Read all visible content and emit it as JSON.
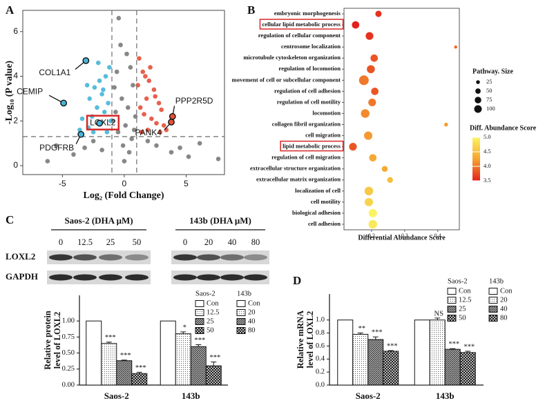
{
  "panel_labels": [
    "A",
    "B",
    "C",
    "D"
  ],
  "blot": {
    "groups": [
      "Saos-2 (DHA μM)",
      "143b (DHA μM)"
    ],
    "lanes": [
      [
        "0",
        "12.5",
        "25",
        "50"
      ],
      [
        "0",
        "20",
        "40",
        "80"
      ]
    ],
    "rows": [
      "LOXL2",
      "GAPDH"
    ]
  },
  "chart_data": [
    {
      "type": "scatter",
      "xlabel": "Log₂ (Fold Change)",
      "ylabel": "-Log₁₀ (P value)",
      "xlim": [
        -8.2,
        8.1
      ],
      "ylim": [
        -0.4,
        6.95
      ],
      "xticks": [
        -5,
        0,
        5
      ],
      "yticks": [
        0,
        2,
        4,
        6
      ],
      "grid": false,
      "ref_lines": {
        "x": [
          -1,
          1
        ],
        "y": [
          1.3
        ]
      },
      "series": [
        {
          "color": "#7a7a7a",
          "x": [
            -0.45,
            -0.3,
            0.2,
            -0.6,
            0.5,
            -0.8,
            0.7,
            -0.2,
            0.3,
            0.9,
            -0.9,
            0.1,
            -0.5,
            0.6,
            -0.1,
            0.4,
            -3.2,
            -4.1,
            -5.5,
            -2.5,
            2.6,
            3.8,
            5.2,
            7.6,
            6.1,
            -1.8,
            1.9,
            -6.2,
            4.5,
            0.0,
            -0.7,
            0.8
          ],
          "values": [
            6.6,
            5.4,
            5.0,
            4.2,
            4.4,
            3.5,
            3.6,
            3.0,
            2.6,
            2.2,
            2.0,
            1.8,
            1.5,
            1.2,
            0.9,
            0.6,
            0.8,
            0.5,
            0.9,
            1.1,
            0.9,
            0.6,
            0.4,
            0.3,
            1.0,
            0.7,
            1.1,
            0.2,
            0.8,
            0.2,
            2.4,
            1.6
          ]
        },
        {
          "color": "#45b5d6",
          "x": [
            -1.2,
            -1.5,
            -2.0,
            -2.4,
            -1.8,
            -2.8,
            -3.0,
            -1.3,
            -1.6,
            -2.2,
            -2.6,
            -3.4,
            -1.9,
            -1.1,
            -2.9,
            -3.6,
            -1.4,
            -2.1,
            -2.5,
            -1.7
          ],
          "values": [
            4.4,
            4.0,
            3.8,
            3.5,
            3.2,
            3.0,
            3.6,
            2.8,
            2.4,
            2.6,
            2.2,
            2.1,
            1.9,
            2.0,
            1.7,
            1.6,
            1.5,
            4.6,
            1.5,
            3.4
          ]
        },
        {
          "color": "#e5503a",
          "x": [
            1.2,
            1.5,
            2.0,
            2.4,
            1.8,
            2.8,
            3.0,
            1.3,
            1.6,
            2.2,
            2.6,
            3.2,
            1.9,
            1.1,
            2.9,
            1.4,
            2.1,
            1.7,
            2.5,
            3.4
          ],
          "values": [
            4.8,
            4.2,
            3.8,
            3.4,
            3.0,
            2.8,
            2.5,
            2.6,
            2.3,
            2.1,
            1.9,
            1.8,
            1.6,
            3.6,
            1.5,
            1.5,
            4.4,
            4.0,
            3.1,
            1.6
          ]
        }
      ],
      "annotations": [
        {
          "text": "COL1A1",
          "x": -3.1,
          "y": 4.7,
          "color": "#45b5d6"
        },
        {
          "text": "CEMIP",
          "x": -4.9,
          "y": 2.8,
          "color": "#45b5d6"
        },
        {
          "text": "LOXL2",
          "x": -2.0,
          "y": 1.9,
          "color": "#45b5d6",
          "boxed": true
        },
        {
          "text": "PDGFRB",
          "x": -3.5,
          "y": 1.4,
          "color": "#45b5d6"
        },
        {
          "text": "PPP2R5D",
          "x": 3.9,
          "y": 2.2,
          "color": "#e5503a"
        },
        {
          "text": "PANK4",
          "x": 3.8,
          "y": 1.95,
          "color": "#e5503a"
        }
      ]
    },
    {
      "type": "bubble",
      "xlabel": "Differential Abundance Score",
      "categories": [
        "embryonic morphogenesis",
        "cellular lipid metabolic process",
        "regulation of cellular component",
        "centrosome localization",
        "microtubule cytoskeleton organization",
        "regulation of locomotion",
        "movement of cell or subcellular component",
        "regulation of cell adhesion",
        "regulation of cell motility",
        "locomotion",
        "collagen fibril organization",
        "cell migration",
        "lipid metabolic process",
        "regulation of cell migration",
        "extracellular structure organization",
        "extracellular matrix organization",
        "localization of cell",
        "cell motility",
        "biological adhesion",
        "cell adhesion"
      ],
      "values": [
        0.221,
        0.152,
        0.194,
        0.454,
        0.208,
        0.198,
        0.177,
        0.21,
        0.202,
        0.181,
        0.425,
        0.19,
        0.144,
        0.204,
        0.24,
        0.256,
        0.192,
        0.192,
        0.204,
        0.204
      ],
      "sizes": [
        40,
        55,
        60,
        10,
        55,
        65,
        95,
        55,
        60,
        75,
        15,
        70,
        60,
        55,
        35,
        35,
        75,
        70,
        70,
        75
      ],
      "scores": [
        3.6,
        3.5,
        3.6,
        3.9,
        3.8,
        3.8,
        4.0,
        3.8,
        4.0,
        4.1,
        4.2,
        4.2,
        3.8,
        4.3,
        4.3,
        4.5,
        4.6,
        4.7,
        5.0,
        4.9
      ],
      "highlight": [
        1,
        12
      ],
      "xlim": [
        0.117,
        0.465
      ],
      "xticks": [
        0.2,
        0.3,
        0.4
      ],
      "grid": false,
      "size_legend": {
        "title": "Pathway. Size",
        "values": [
          25,
          50,
          75,
          100
        ]
      },
      "color_legend": {
        "title": "Diff. Abundance Score",
        "ticks": [
          3.5,
          {
            "value": 4,
            "label": "4.0"
          },
          4.5,
          {
            "value": 5,
            "label": "5.0"
          }
        ],
        "colors": [
          "#e3211c",
          "#f5a431",
          "#faf462"
        ]
      }
    },
    {
      "type": "bar",
      "ylabel": [
        "Relative protein",
        "level of LOXL2"
      ],
      "categories": [
        "Saos-2",
        "143b"
      ],
      "ylim": [
        0,
        1.4
      ],
      "yticks": [
        {
          "value": 0,
          "label": "0.00"
        },
        0.25,
        {
          "value": 0.5,
          "label": "0.50"
        },
        0.75,
        {
          "value": 1,
          "label": "1.00"
        }
      ],
      "series": [
        {
          "pattern": "white",
          "values": [
            1.0,
            1.0
          ],
          "errors": [
            0,
            0
          ],
          "sig": [
            null,
            null
          ]
        },
        {
          "pattern": "dots",
          "values": [
            0.65,
            0.8
          ],
          "errors": [
            0.02,
            0.03
          ],
          "sig": [
            "***",
            "*"
          ]
        },
        {
          "pattern": "hatch",
          "values": [
            0.38,
            0.6
          ],
          "errors": [
            0.01,
            0.03
          ],
          "sig": [
            "***",
            "***"
          ]
        },
        {
          "pattern": "cross",
          "values": [
            0.18,
            0.3
          ],
          "errors": [
            0.02,
            0.06
          ],
          "sig": [
            "***",
            "***"
          ]
        }
      ],
      "legend": {
        "columns": [
          {
            "title": "Saos-2",
            "labels": [
              "Con",
              "12.5",
              "25",
              "50"
            ]
          },
          {
            "title": "143b",
            "labels": [
              "Con",
              "20",
              "40",
              "80"
            ]
          }
        ]
      }
    },
    {
      "type": "bar",
      "ylabel": [
        "Relative mRNA",
        "level of LOXL2"
      ],
      "categories": [
        "Saos-2",
        "143b"
      ],
      "ylim": [
        0,
        1.4
      ],
      "yticks": [
        {
          "value": 0,
          "label": "0.0"
        },
        0.2,
        0.4,
        0.6,
        0.8,
        {
          "value": 1,
          "label": "1.0"
        }
      ],
      "series": [
        {
          "pattern": "white",
          "values": [
            1.0,
            1.0
          ],
          "errors": [
            0,
            0
          ],
          "sig": [
            null,
            null
          ]
        },
        {
          "pattern": "dots",
          "values": [
            0.78,
            1.0
          ],
          "errors": [
            0.02,
            0.03
          ],
          "sig": [
            "**",
            "NS"
          ]
        },
        {
          "pattern": "hatch",
          "values": [
            0.7,
            0.55
          ],
          "errors": [
            0.04,
            0.01
          ],
          "sig": [
            "***",
            "***"
          ]
        },
        {
          "pattern": "cross",
          "values": [
            0.52,
            0.5
          ],
          "errors": [
            0.01,
            0.02
          ],
          "sig": [
            "***",
            "***"
          ]
        }
      ],
      "legend": {
        "columns": [
          {
            "title": "Saos-2",
            "labels": [
              "Con",
              "12.5",
              "25",
              "50"
            ]
          },
          {
            "title": "143b",
            "labels": [
              "Con",
              "20",
              "40",
              "80"
            ]
          }
        ]
      }
    }
  ]
}
